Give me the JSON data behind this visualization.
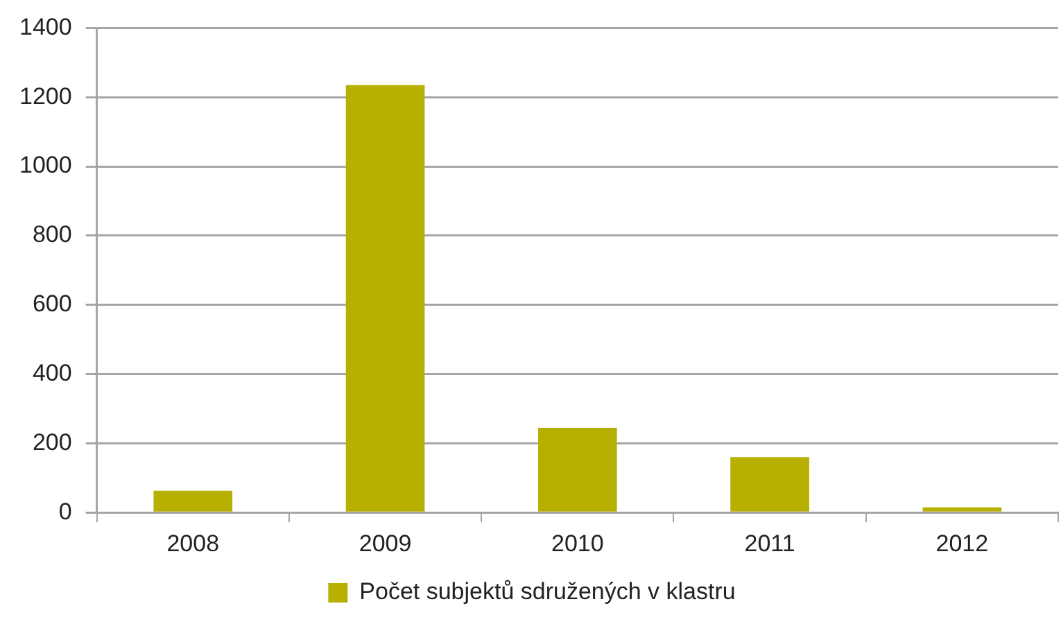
{
  "chart_data": {
    "type": "bar",
    "categories": [
      "2008",
      "2009",
      "2010",
      "2011",
      "2012"
    ],
    "series": [
      {
        "name": "Počet subjektů sdružených v klastru",
        "color": "#b8b000",
        "values": [
          63,
          1235,
          245,
          160,
          15
        ]
      }
    ],
    "ylim": [
      0,
      1400
    ],
    "yticks": [
      0,
      200,
      400,
      600,
      800,
      1000,
      1200,
      1400
    ],
    "grid": "y",
    "legend": "bottom"
  }
}
